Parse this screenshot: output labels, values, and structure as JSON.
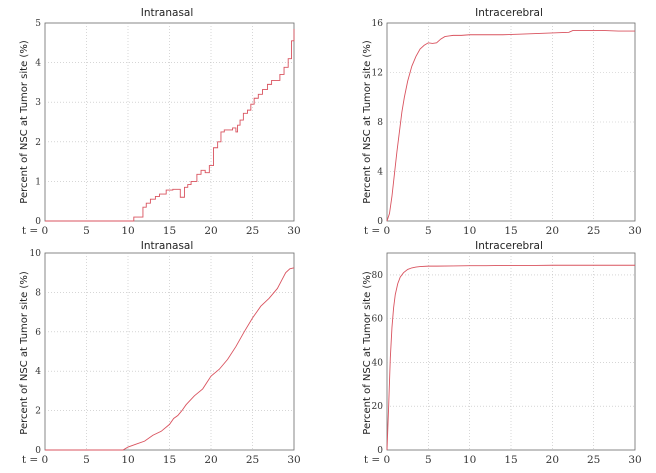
{
  "series_color": "#d9535f",
  "chart_data": [
    {
      "type": "line",
      "title": "Intranasal",
      "xlabel": "",
      "ylabel": "Percent of NSC at Tumor site (%)",
      "xlim": [
        0,
        30
      ],
      "ylim": [
        0,
        5
      ],
      "grid": true,
      "xticks": [
        0,
        5,
        10,
        15,
        20,
        25,
        30
      ],
      "xtick_labels": [
        "t = 0",
        "5",
        "10",
        "15",
        "20",
        "25",
        "30"
      ],
      "yticks": [
        0,
        1,
        2,
        3,
        4,
        5
      ],
      "ytick_labels": [
        "0",
        "1",
        "2",
        "3",
        "4",
        "5"
      ],
      "series": [
        {
          "step": true,
          "x": [
            0,
            10.7,
            11.8,
            12.2,
            12.7,
            13.3,
            13.8,
            14.6,
            15.4,
            16.3,
            16.8,
            17.2,
            17.6,
            18.3,
            18.8,
            19.3,
            19.8,
            20.3,
            20.8,
            21.2,
            21.6,
            22.6,
            23.0,
            23.2,
            23.5,
            23.9,
            24.4,
            24.8,
            25.2,
            25.7,
            26.2,
            26.8,
            27.3,
            27.8,
            28.3,
            28.8,
            29.3,
            29.7,
            30.0
          ],
          "y": [
            0,
            0.1,
            0.35,
            0.45,
            0.55,
            0.62,
            0.68,
            0.78,
            0.8,
            0.6,
            0.85,
            0.92,
            1.0,
            1.18,
            1.28,
            1.22,
            1.4,
            1.85,
            2.0,
            2.25,
            2.3,
            2.35,
            2.25,
            2.42,
            2.55,
            2.72,
            2.8,
            2.95,
            3.1,
            3.2,
            3.32,
            3.45,
            3.55,
            3.55,
            3.7,
            3.88,
            4.1,
            4.55,
            4.85
          ]
        }
      ]
    },
    {
      "type": "line",
      "title": "Intracerebral",
      "xlabel": "",
      "ylabel": "Percent of NSC at Tumor site (%)",
      "xlim": [
        0,
        30
      ],
      "ylim": [
        0,
        16
      ],
      "grid": true,
      "xticks": [
        0,
        5,
        10,
        15,
        20,
        25,
        30
      ],
      "xtick_labels": [
        "t = 0",
        "5",
        "10",
        "15",
        "20",
        "25",
        "30"
      ],
      "yticks": [
        0,
        4,
        8,
        12,
        16
      ],
      "ytick_labels": [
        "0",
        "4",
        "8",
        "12",
        "16"
      ],
      "series": [
        {
          "step": false,
          "x": [
            0,
            0.3,
            0.6,
            0.9,
            1.2,
            1.5,
            1.8,
            2.1,
            2.5,
            3.0,
            3.5,
            4.0,
            4.5,
            5.0,
            5.5,
            6.0,
            6.5,
            7.0,
            7.5,
            8.0,
            9.0,
            10.0,
            12.0,
            14.0,
            16.0,
            18.0,
            20.0,
            22.0,
            22.5,
            24.0,
            26.0,
            28.0,
            30.0
          ],
          "y": [
            0,
            0.6,
            2.0,
            3.8,
            5.6,
            7.2,
            8.8,
            10.0,
            11.3,
            12.5,
            13.3,
            13.9,
            14.2,
            14.4,
            14.35,
            14.4,
            14.7,
            14.9,
            14.95,
            15.0,
            15.0,
            15.05,
            15.05,
            15.05,
            15.1,
            15.15,
            15.2,
            15.25,
            15.4,
            15.4,
            15.4,
            15.35,
            15.35
          ]
        }
      ]
    },
    {
      "type": "line",
      "title": "Intranasal",
      "xlabel": "",
      "ylabel": "Percent of NSC at Tumor site (%)",
      "xlim": [
        0,
        30
      ],
      "ylim": [
        0,
        10
      ],
      "grid": true,
      "xticks": [
        0,
        5,
        10,
        15,
        20,
        25,
        30
      ],
      "xtick_labels": [
        "t = 0",
        "5",
        "10",
        "15",
        "20",
        "25",
        "30"
      ],
      "yticks": [
        0,
        2,
        4,
        6,
        8,
        10
      ],
      "ytick_labels": [
        "0",
        "2",
        "4",
        "6",
        "8",
        "10"
      ],
      "series": [
        {
          "step": false,
          "x": [
            0,
            9.4,
            10.0,
            11.0,
            12.0,
            13.0,
            14.0,
            15.0,
            15.5,
            16.0,
            16.5,
            17.0,
            18.0,
            19.0,
            20.0,
            21.0,
            22.0,
            23.0,
            24.0,
            25.0,
            26.0,
            27.0,
            28.0,
            28.5,
            29.0,
            29.5,
            30.0
          ],
          "y": [
            0,
            0,
            0.15,
            0.3,
            0.45,
            0.75,
            0.95,
            1.3,
            1.6,
            1.75,
            2.0,
            2.3,
            2.75,
            3.1,
            3.75,
            4.1,
            4.6,
            5.25,
            6.0,
            6.7,
            7.3,
            7.7,
            8.2,
            8.6,
            9.0,
            9.2,
            9.25
          ]
        }
      ]
    },
    {
      "type": "line",
      "title": "Intracerebral",
      "xlabel": "",
      "ylabel": "Percent of NSC at Tumor site (%)",
      "xlim": [
        0,
        30
      ],
      "ylim": [
        0,
        90
      ],
      "grid": true,
      "xticks": [
        0,
        5,
        10,
        15,
        20,
        25,
        30
      ],
      "xtick_labels": [
        "t = 0",
        "5",
        "10",
        "15",
        "20",
        "25",
        "30"
      ],
      "yticks": [
        0,
        20,
        40,
        60,
        80
      ],
      "ytick_labels": [
        "0",
        "20",
        "40",
        "60",
        "80"
      ],
      "series": [
        {
          "step": false,
          "x": [
            0,
            0.2,
            0.4,
            0.6,
            0.8,
            1.0,
            1.3,
            1.6,
            2.0,
            2.5,
            3.0,
            3.5,
            4.0,
            5.0,
            6.0,
            8.0,
            10.0,
            12.0,
            14.0,
            16.0,
            18.0,
            20.0,
            22.0,
            24.0,
            26.0,
            28.0,
            30.0
          ],
          "y": [
            0,
            20,
            42,
            56,
            65,
            71,
            76,
            79,
            81,
            82.5,
            83.2,
            83.6,
            83.8,
            84.0,
            84.0,
            84.1,
            84.2,
            84.2,
            84.3,
            84.3,
            84.3,
            84.4,
            84.4,
            84.4,
            84.4,
            84.4,
            84.4
          ]
        }
      ]
    }
  ]
}
